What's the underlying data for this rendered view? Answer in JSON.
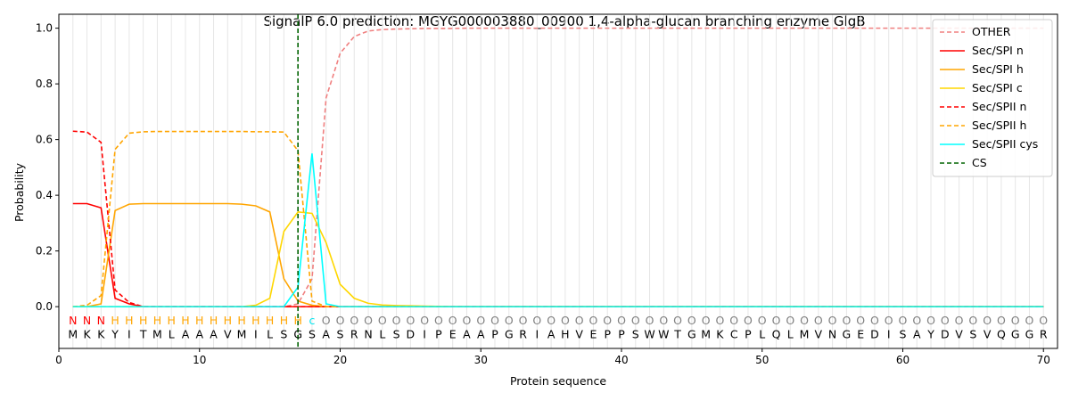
{
  "chart_data": {
    "type": "line",
    "title": "SignalP 6.0 prediction: MGYG000003880_00900 1,4-alpha-glucan branching enzyme GlgB",
    "xlabel": "Protein sequence",
    "ylabel": "Probability",
    "xlim": [
      0,
      71
    ],
    "ylim": [
      -0.15,
      1.05
    ],
    "xticks": [
      "0",
      "10",
      "20",
      "30",
      "40",
      "50",
      "60",
      "70"
    ],
    "yticks": [
      "0.0",
      "0.2",
      "0.4",
      "0.6",
      "0.8",
      "1.0"
    ],
    "legend_position": "top-right",
    "sequence": [
      "M",
      "K",
      "K",
      "Y",
      "I",
      "T",
      "M",
      "L",
      "A",
      "A",
      "A",
      "V",
      "M",
      "I",
      "L",
      "S",
      "G",
      "S",
      "A",
      "S",
      "R",
      "N",
      "L",
      "S",
      "D",
      "I",
      "P",
      "E",
      "A",
      "A",
      "P",
      "G",
      "R",
      "I",
      "A",
      "H",
      "V",
      "E",
      "P",
      "P",
      "S",
      "W",
      "W",
      "T",
      "G",
      "M",
      "K",
      "C",
      "P",
      "L",
      "Q",
      "L",
      "M",
      "V",
      "N",
      "G",
      "E",
      "D",
      "I",
      "S",
      "A",
      "Y",
      "D",
      "V",
      "S",
      "V",
      "Q",
      "G",
      "G",
      "R"
    ],
    "annotation": [
      "N",
      "N",
      "N",
      "H",
      "H",
      "H",
      "H",
      "H",
      "H",
      "H",
      "H",
      "H",
      "H",
      "H",
      "H",
      "H",
      "H",
      "c",
      "O",
      "O",
      "O",
      "O",
      "O",
      "O",
      "O",
      "O",
      "O",
      "O",
      "O",
      "O",
      "O",
      "O",
      "O",
      "O",
      "O",
      "O",
      "O",
      "O",
      "O",
      "O",
      "O",
      "O",
      "O",
      "O",
      "O",
      "O",
      "O",
      "O",
      "O",
      "O",
      "O",
      "O",
      "O",
      "O",
      "O",
      "O",
      "O",
      "O",
      "O",
      "O",
      "O",
      "O",
      "O",
      "O",
      "O",
      "O",
      "O",
      "O",
      "O",
      "O"
    ],
    "annotation_colors": {
      "N": "#ff0000",
      "H": "#ffa500",
      "c": "#00e5ee",
      "O": "#808080"
    },
    "cleavage_site": 17,
    "series": [
      {
        "name": "OTHER",
        "color": "#f08080",
        "dash": true,
        "values": [
          0,
          0,
          0,
          0,
          0,
          0,
          0,
          0,
          0,
          0,
          0,
          0,
          0,
          0,
          0,
          0,
          0.01,
          0.1,
          0.75,
          0.91,
          0.97,
          0.99,
          0.995,
          0.997,
          0.998,
          0.999,
          0.999,
          0.999,
          1,
          1,
          1,
          1,
          1,
          1,
          1,
          1,
          1,
          1,
          1,
          1,
          1,
          1,
          1,
          1,
          1,
          1,
          1,
          1,
          1,
          1,
          1,
          1,
          1,
          1,
          1,
          1,
          1,
          1,
          1,
          1,
          1,
          1,
          1,
          1,
          1,
          1,
          1,
          1,
          1,
          1
        ]
      },
      {
        "name": "Sec/SPI n",
        "color": "#ff0000",
        "dash": false,
        "values": [
          0.37,
          0.37,
          0.355,
          0.03,
          0.01,
          0,
          0,
          0,
          0,
          0,
          0,
          0,
          0,
          0,
          0,
          0,
          0,
          0,
          0,
          0,
          0,
          0,
          0,
          0,
          0,
          0,
          0,
          0,
          0,
          0,
          0,
          0,
          0,
          0,
          0,
          0,
          0,
          0,
          0,
          0,
          0,
          0,
          0,
          0,
          0,
          0,
          0,
          0,
          0,
          0,
          0,
          0,
          0,
          0,
          0,
          0,
          0,
          0,
          0,
          0,
          0,
          0,
          0,
          0,
          0,
          0,
          0,
          0,
          0,
          0
        ]
      },
      {
        "name": "Sec/SPI h",
        "color": "#ffa500",
        "dash": false,
        "values": [
          0,
          0,
          0.01,
          0.345,
          0.368,
          0.37,
          0.37,
          0.37,
          0.37,
          0.37,
          0.37,
          0.37,
          0.368,
          0.362,
          0.34,
          0.1,
          0.02,
          0.005,
          0,
          0,
          0,
          0,
          0,
          0,
          0,
          0,
          0,
          0,
          0,
          0,
          0,
          0,
          0,
          0,
          0,
          0,
          0,
          0,
          0,
          0,
          0,
          0,
          0,
          0,
          0,
          0,
          0,
          0,
          0,
          0,
          0,
          0,
          0,
          0,
          0,
          0,
          0,
          0,
          0,
          0,
          0,
          0,
          0,
          0,
          0,
          0,
          0,
          0,
          0,
          0
        ]
      },
      {
        "name": "Sec/SPI c",
        "color": "#ffd700",
        "dash": false,
        "values": [
          0,
          0,
          0,
          0,
          0,
          0,
          0,
          0,
          0,
          0,
          0,
          0,
          0,
          0.005,
          0.03,
          0.27,
          0.34,
          0.335,
          0.23,
          0.08,
          0.03,
          0.012,
          0.006,
          0.004,
          0.003,
          0.002,
          0.001,
          0,
          0,
          0,
          0,
          0,
          0,
          0,
          0,
          0,
          0,
          0,
          0,
          0,
          0,
          0,
          0,
          0,
          0,
          0,
          0,
          0,
          0,
          0,
          0,
          0,
          0,
          0,
          0,
          0,
          0,
          0,
          0,
          0,
          0,
          0,
          0,
          0,
          0,
          0,
          0,
          0,
          0,
          0
        ]
      },
      {
        "name": "Sec/SPII n",
        "color": "#ff0000",
        "dash": true,
        "values": [
          0.63,
          0.627,
          0.59,
          0.06,
          0.015,
          0,
          0,
          0,
          0,
          0,
          0,
          0,
          0,
          0,
          0,
          0,
          0,
          0,
          0,
          0,
          0,
          0,
          0,
          0,
          0,
          0,
          0,
          0,
          0,
          0,
          0,
          0,
          0,
          0,
          0,
          0,
          0,
          0,
          0,
          0,
          0,
          0,
          0,
          0,
          0,
          0,
          0,
          0,
          0,
          0,
          0,
          0,
          0,
          0,
          0,
          0,
          0,
          0,
          0,
          0,
          0,
          0,
          0,
          0,
          0,
          0,
          0,
          0,
          0,
          0
        ]
      },
      {
        "name": "Sec/SPII h",
        "color": "#ffa500",
        "dash": true,
        "values": [
          0,
          0.005,
          0.04,
          0.565,
          0.623,
          0.628,
          0.629,
          0.629,
          0.629,
          0.629,
          0.629,
          0.629,
          0.629,
          0.628,
          0.628,
          0.627,
          0.56,
          0.02,
          0,
          0,
          0,
          0,
          0,
          0,
          0,
          0,
          0,
          0,
          0,
          0,
          0,
          0,
          0,
          0,
          0,
          0,
          0,
          0,
          0,
          0,
          0,
          0,
          0,
          0,
          0,
          0,
          0,
          0,
          0,
          0,
          0,
          0,
          0,
          0,
          0,
          0,
          0,
          0,
          0,
          0,
          0,
          0,
          0,
          0,
          0,
          0,
          0,
          0,
          0,
          0
        ]
      },
      {
        "name": "Sec/SPII cys",
        "color": "#00ffff",
        "dash": false,
        "values": [
          0,
          0,
          0,
          0,
          0,
          0,
          0,
          0,
          0,
          0,
          0,
          0,
          0,
          0,
          0,
          0,
          0.07,
          0.55,
          0.01,
          0,
          0,
          0,
          0,
          0,
          0,
          0,
          0,
          0,
          0,
          0,
          0,
          0,
          0,
          0,
          0,
          0,
          0,
          0,
          0,
          0,
          0,
          0,
          0,
          0,
          0,
          0,
          0,
          0,
          0,
          0,
          0,
          0,
          0,
          0,
          0,
          0,
          0,
          0,
          0,
          0,
          0,
          0,
          0,
          0,
          0,
          0,
          0,
          0,
          0,
          0
        ]
      }
    ],
    "legend": [
      {
        "name": "OTHER",
        "color": "#f08080",
        "dash": true
      },
      {
        "name": "Sec/SPI n",
        "color": "#ff0000",
        "dash": false
      },
      {
        "name": "Sec/SPI h",
        "color": "#ffa500",
        "dash": false
      },
      {
        "name": "Sec/SPI c",
        "color": "#ffd700",
        "dash": false
      },
      {
        "name": "Sec/SPII n",
        "color": "#ff0000",
        "dash": true
      },
      {
        "name": "Sec/SPII h",
        "color": "#ffa500",
        "dash": true
      },
      {
        "name": "Sec/SPII cys",
        "color": "#00ffff",
        "dash": false
      },
      {
        "name": "CS",
        "color": "#006400",
        "dash": true
      }
    ]
  }
}
